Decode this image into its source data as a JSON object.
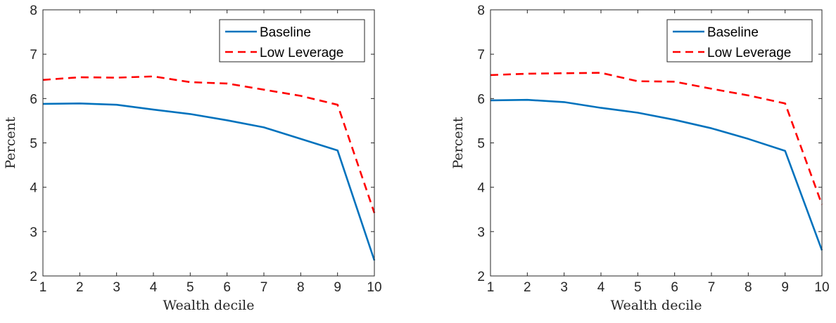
{
  "chart_data": [
    {
      "type": "line",
      "title": "",
      "xlabel": "Wealth decile",
      "ylabel": "Percent",
      "xlim": [
        1,
        10
      ],
      "ylim": [
        2,
        8
      ],
      "xticks": [
        1,
        2,
        3,
        4,
        5,
        6,
        7,
        8,
        9,
        10
      ],
      "yticks": [
        2,
        3,
        4,
        5,
        6,
        7,
        8
      ],
      "grid": false,
      "legend_position": "top-right",
      "x": [
        1,
        2,
        3,
        4,
        5,
        6,
        7,
        8,
        9,
        10
      ],
      "series": [
        {
          "name": "Baseline",
          "color": "#0072BD",
          "style": "solid",
          "values": [
            5.88,
            5.89,
            5.86,
            5.75,
            5.65,
            5.51,
            5.35,
            5.09,
            4.83,
            2.35
          ]
        },
        {
          "name": "Low Leverage",
          "color": "#FF0000",
          "style": "dashed",
          "values": [
            6.42,
            6.48,
            6.47,
            6.5,
            6.37,
            6.34,
            6.2,
            6.06,
            5.86,
            3.42
          ]
        }
      ]
    },
    {
      "type": "line",
      "title": "",
      "xlabel": "Wealth decile",
      "ylabel": "Percent",
      "xlim": [
        1,
        10
      ],
      "ylim": [
        2,
        8
      ],
      "xticks": [
        1,
        2,
        3,
        4,
        5,
        6,
        7,
        8,
        9,
        10
      ],
      "yticks": [
        2,
        3,
        4,
        5,
        6,
        7,
        8
      ],
      "grid": false,
      "legend_position": "top-right",
      "x": [
        1,
        2,
        3,
        4,
        5,
        6,
        7,
        8,
        9,
        10
      ],
      "series": [
        {
          "name": "Baseline",
          "color": "#0072BD",
          "style": "solid",
          "values": [
            5.96,
            5.97,
            5.92,
            5.79,
            5.68,
            5.52,
            5.33,
            5.09,
            4.82,
            2.58
          ]
        },
        {
          "name": "Low Leverage",
          "color": "#FF0000",
          "style": "dashed",
          "values": [
            6.53,
            6.56,
            6.57,
            6.58,
            6.39,
            6.38,
            6.22,
            6.07,
            5.89,
            3.61
          ]
        }
      ]
    }
  ]
}
